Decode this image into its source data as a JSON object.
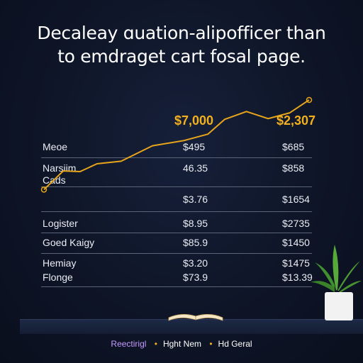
{
  "headline": {
    "line1": "Decaleay ɑuation-alipofficer than",
    "line2": "to emdraget cart fosal page."
  },
  "colors": {
    "background": "#0e1527",
    "line": "#e7a51c",
    "callout": "#f2b01e"
  },
  "chart_data": {
    "type": "line",
    "callouts": [
      "$7,000",
      "$2,307"
    ],
    "series": [
      {
        "values": [
          [
            0.0,
            0.16
          ],
          [
            0.08,
            0.45
          ],
          [
            0.15,
            0.44
          ],
          [
            0.22,
            0.56
          ],
          [
            0.32,
            0.6
          ],
          [
            0.45,
            0.84
          ],
          [
            0.58,
            0.92
          ],
          [
            0.68,
            1.02
          ],
          [
            0.75,
            1.25
          ],
          [
            0.84,
            1.37
          ],
          [
            0.93,
            1.26
          ],
          [
            1.02,
            1.35
          ],
          [
            1.1,
            1.55
          ]
        ]
      }
    ],
    "table": {
      "rows": [
        {
          "label": "Meoe",
          "col1": "$495",
          "col2": "$685"
        },
        {
          "label": "Narsiim Cads",
          "col1": "46.35",
          "col2": "$858"
        },
        {
          "label": "",
          "col1": "$3.76",
          "col2": "$1654"
        },
        {
          "label": "Logister",
          "col1": "$8.95",
          "col2": "$2735"
        },
        {
          "label": "Goed Kaigy",
          "col1": "$85.9",
          "col2": "$1450"
        },
        {
          "label": "Hemiay",
          "col1": "$3.20",
          "col2": "$1475"
        },
        {
          "label": "Flonge",
          "col1": "$73.9",
          "col2": "$13.39"
        }
      ]
    },
    "legend": [
      "Reectirigl",
      "Hght Nem",
      "Hd Geral"
    ]
  }
}
